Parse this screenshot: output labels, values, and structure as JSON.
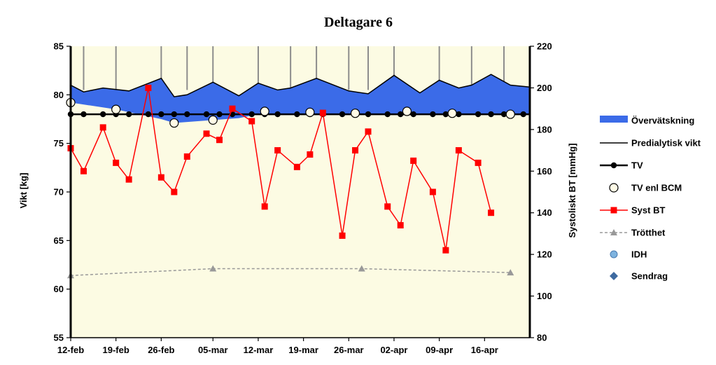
{
  "chart_data": {
    "type": "line",
    "title": "Deltagare 6",
    "x_axis": {
      "start": "2012-02-12",
      "end": "2012-04-23",
      "tick_labels": [
        "12-feb",
        "19-feb",
        "26-feb",
        "05-mar",
        "12-mar",
        "19-mar",
        "26-mar",
        "02-apr",
        "09-apr",
        "16-apr"
      ],
      "tick_dates": [
        "2012-02-12",
        "2012-02-19",
        "2012-02-26",
        "2012-03-05",
        "2012-03-12",
        "2012-03-19",
        "2012-03-26",
        "2012-04-02",
        "2012-04-09",
        "2012-04-16"
      ]
    },
    "y_left": {
      "label": "Vikt [kg]",
      "min": 55,
      "max": 85,
      "ticks": [
        "55",
        "60",
        "65",
        "70",
        "75",
        "80",
        "85"
      ]
    },
    "y_right": {
      "label": "Systoliskt BT [mmHg]",
      "min": 80,
      "max": 220,
      "ticks": [
        "80",
        "100",
        "120",
        "140",
        "160",
        "180",
        "200",
        "220"
      ]
    },
    "tv_value": 78,
    "series": {
      "overvatskning": {
        "name": "Övervätskning",
        "color": "#3b6be8",
        "axis": "left",
        "upper": [
          [
            "2012-02-12",
            81.0
          ],
          [
            "2012-02-14",
            80.3
          ],
          [
            "2012-02-17",
            80.7
          ],
          [
            "2012-02-21",
            80.4
          ],
          [
            "2012-02-26",
            81.7
          ],
          [
            "2012-02-28",
            79.8
          ],
          [
            "2012-03-01",
            80.0
          ],
          [
            "2012-03-05",
            81.3
          ],
          [
            "2012-03-09",
            79.9
          ],
          [
            "2012-03-12",
            81.2
          ],
          [
            "2012-03-15",
            80.5
          ],
          [
            "2012-03-17",
            80.7
          ],
          [
            "2012-03-21",
            81.7
          ],
          [
            "2012-03-26",
            80.4
          ],
          [
            "2012-03-29",
            80.1
          ],
          [
            "2012-04-02",
            82.0
          ],
          [
            "2012-04-06",
            80.2
          ],
          [
            "2012-04-09",
            81.5
          ],
          [
            "2012-04-12",
            80.7
          ],
          [
            "2012-04-14",
            81.0
          ],
          [
            "2012-04-17",
            82.1
          ],
          [
            "2012-04-20",
            81.0
          ],
          [
            "2012-04-23",
            80.8
          ]
        ],
        "lower": [
          [
            "2012-02-12",
            79.2
          ],
          [
            "2012-02-19",
            78.5
          ],
          [
            "2012-02-26",
            77.5
          ],
          [
            "2012-02-28",
            77.1
          ],
          [
            "2012-03-05",
            77.4
          ],
          [
            "2012-03-09",
            77.6
          ],
          [
            "2012-03-12",
            78.0
          ],
          [
            "2012-04-23",
            78.0
          ]
        ]
      },
      "predialytisk_vikt": {
        "name": "Predialytisk vikt",
        "color": "#000000",
        "axis": "left",
        "points": [
          [
            "2012-02-12",
            81.0
          ],
          [
            "2012-02-14",
            80.3
          ],
          [
            "2012-02-17",
            80.7
          ],
          [
            "2012-02-21",
            80.4
          ],
          [
            "2012-02-26",
            81.7
          ],
          [
            "2012-02-28",
            79.8
          ],
          [
            "2012-03-01",
            80.0
          ],
          [
            "2012-03-05",
            81.3
          ],
          [
            "2012-03-09",
            79.9
          ],
          [
            "2012-03-12",
            81.2
          ],
          [
            "2012-03-15",
            80.5
          ],
          [
            "2012-03-17",
            80.7
          ],
          [
            "2012-03-21",
            81.7
          ],
          [
            "2012-03-26",
            80.4
          ],
          [
            "2012-03-29",
            80.1
          ],
          [
            "2012-04-02",
            82.0
          ],
          [
            "2012-04-06",
            80.2
          ],
          [
            "2012-04-09",
            81.5
          ],
          [
            "2012-04-12",
            80.7
          ],
          [
            "2012-04-14",
            81.0
          ],
          [
            "2012-04-17",
            82.1
          ],
          [
            "2012-04-20",
            81.0
          ],
          [
            "2012-04-23",
            80.8
          ]
        ]
      },
      "tv": {
        "name": "TV",
        "color": "#000000",
        "axis": "left",
        "value": 78,
        "dates": [
          "2012-02-12",
          "2012-02-14",
          "2012-02-17",
          "2012-02-19",
          "2012-02-21",
          "2012-02-24",
          "2012-02-26",
          "2012-02-28",
          "2012-03-01",
          "2012-03-04",
          "2012-03-06",
          "2012-03-08",
          "2012-03-11",
          "2012-03-13",
          "2012-03-15",
          "2012-03-18",
          "2012-03-20",
          "2012-03-22",
          "2012-03-25",
          "2012-03-27",
          "2012-03-29",
          "2012-04-01",
          "2012-04-03",
          "2012-04-05",
          "2012-04-08",
          "2012-04-10",
          "2012-04-12",
          "2012-04-15",
          "2012-04-17",
          "2012-04-19",
          "2012-04-22"
        ]
      },
      "tv_enl_bcm": {
        "name": "TV enl BCM",
        "axis": "left",
        "points": [
          [
            "2012-02-12",
            79.2
          ],
          [
            "2012-02-19",
            78.5
          ],
          [
            "2012-02-28",
            77.1
          ],
          [
            "2012-03-05",
            77.4
          ],
          [
            "2012-03-13",
            78.3
          ],
          [
            "2012-03-20",
            78.2
          ],
          [
            "2012-03-27",
            78.1
          ],
          [
            "2012-04-04",
            78.3
          ],
          [
            "2012-04-11",
            78.1
          ],
          [
            "2012-04-20",
            78.0
          ]
        ]
      },
      "syst_bt": {
        "name": "Syst BT",
        "color": "#ff0000",
        "axis": "right",
        "points": [
          [
            "2012-02-12",
            171
          ],
          [
            "2012-02-14",
            160
          ],
          [
            "2012-02-17",
            181
          ],
          [
            "2012-02-19",
            164
          ],
          [
            "2012-02-21",
            156
          ],
          [
            "2012-02-24",
            200
          ],
          [
            "2012-02-26",
            157
          ],
          [
            "2012-02-28",
            150
          ],
          [
            "2012-03-01",
            167
          ],
          [
            "2012-03-04",
            178
          ],
          [
            "2012-03-06",
            175
          ],
          [
            "2012-03-08",
            190
          ],
          [
            "2012-03-11",
            184
          ],
          [
            "2012-03-13",
            143
          ],
          [
            "2012-03-15",
            170
          ],
          [
            "2012-03-18",
            162
          ],
          [
            "2012-03-20",
            168
          ],
          [
            "2012-03-22",
            188
          ],
          [
            "2012-03-25",
            129
          ],
          [
            "2012-03-27",
            170
          ],
          [
            "2012-03-29",
            179
          ],
          [
            "2012-04-01",
            143
          ],
          [
            "2012-04-03",
            134
          ],
          [
            "2012-04-05",
            165
          ],
          [
            "2012-04-08",
            150
          ],
          [
            "2012-04-10",
            122
          ],
          [
            "2012-04-12",
            170
          ],
          [
            "2012-04-15",
            164
          ],
          [
            "2012-04-17",
            140
          ]
        ]
      },
      "trotthet": {
        "name": "Trötthet",
        "color": "#999999",
        "axis": "left",
        "points": [
          [
            "2012-02-12",
            61.4
          ],
          [
            "2012-03-05",
            62.1
          ],
          [
            "2012-03-28",
            62.1
          ],
          [
            "2012-04-20",
            61.7
          ]
        ]
      },
      "idh": {
        "name": "IDH",
        "color": "#7eb3df",
        "axis": "left",
        "points": []
      },
      "sendrag": {
        "name": "Sendrag",
        "color": "#3e6aa0",
        "axis": "left",
        "points": []
      }
    },
    "dialysis_dates": [
      "2012-02-14",
      "2012-02-19",
      "2012-02-26",
      "2012-03-01",
      "2012-03-05",
      "2012-03-12",
      "2012-03-17",
      "2012-03-21",
      "2012-03-26",
      "2012-03-29",
      "2012-04-02",
      "2012-04-09",
      "2012-04-14",
      "2012-04-19"
    ],
    "legend": {
      "position": "right",
      "entries": [
        "Övervätskning",
        "Predialytisk vikt",
        "TV",
        "TV enl BCM",
        "Syst BT",
        "Trötthet",
        "IDH",
        "Sendrag"
      ]
    },
    "plot_background": "#fcfbe3",
    "grid": false
  }
}
